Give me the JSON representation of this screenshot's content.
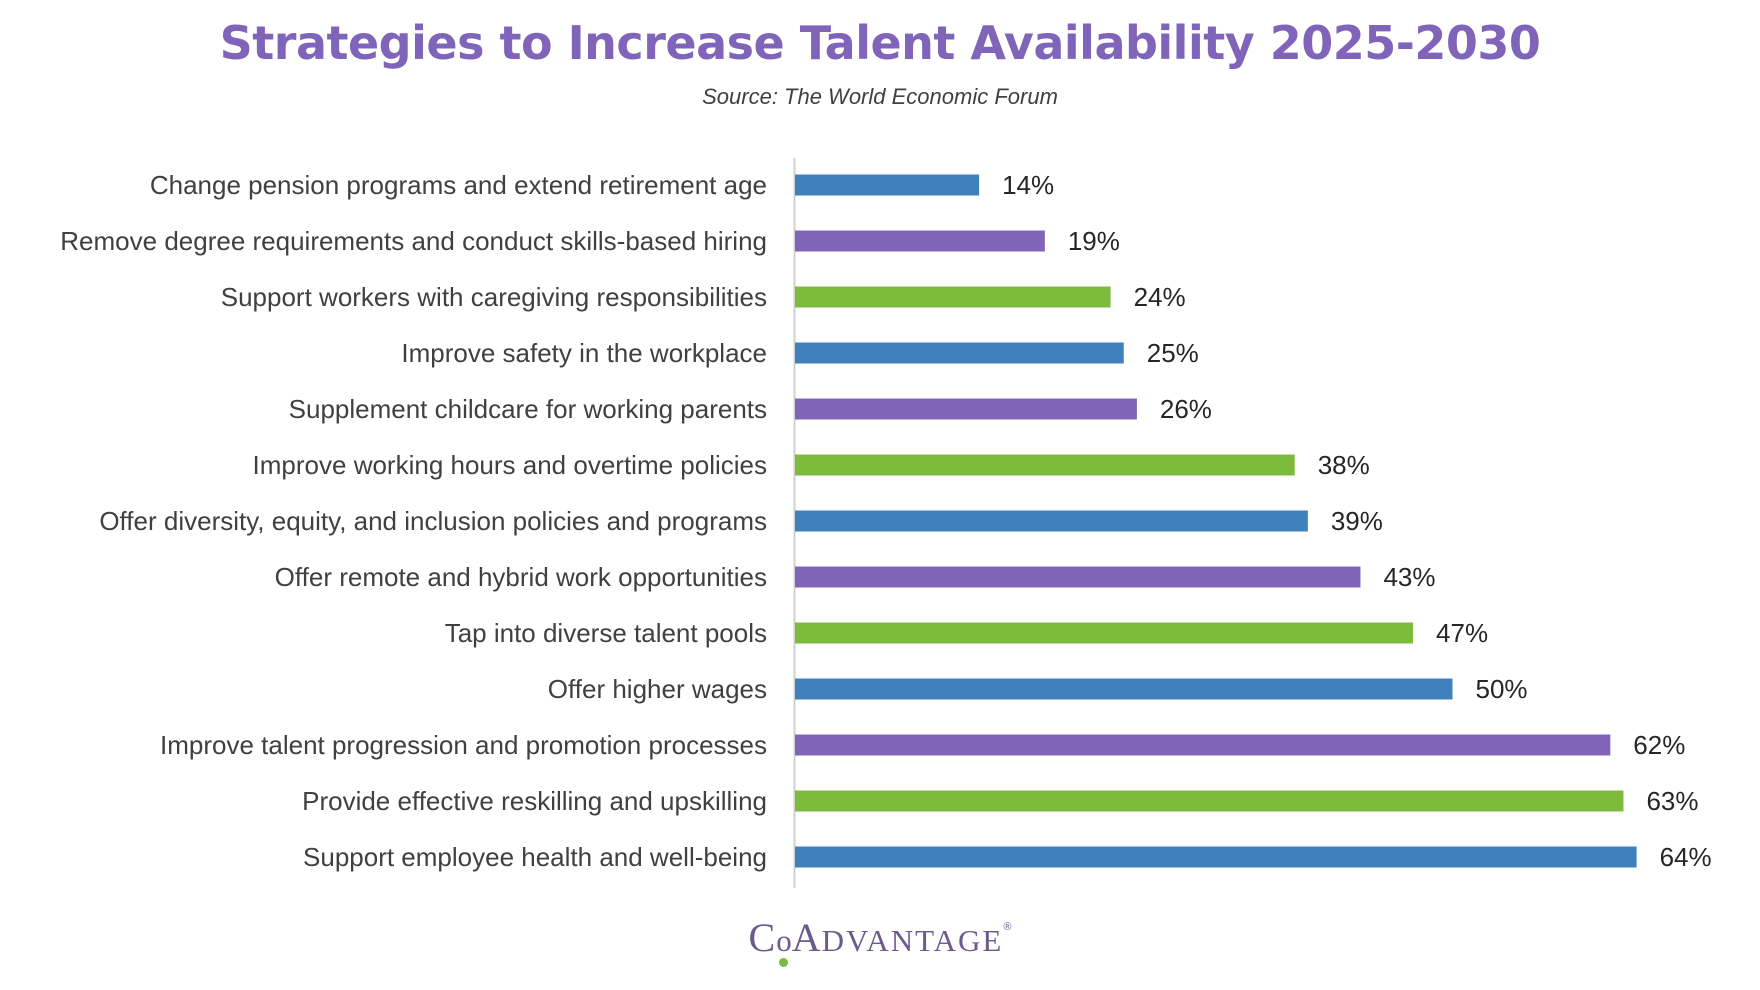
{
  "chart_data": {
    "type": "bar",
    "orientation": "horizontal",
    "title": "Strategies to Increase Talent Availability 2025-2030",
    "subtitle": "Source: The World Economic Forum",
    "xlabel": "",
    "ylabel": "",
    "xlim": [
      0,
      70
    ],
    "grid": false,
    "legend": "none",
    "unit": "%",
    "categories": [
      "Change pension programs and extend retirement age",
      "Remove degree requirements and conduct skills-based hiring",
      "Support workers with caregiving responsibilities",
      "Improve safety in the workplace",
      "Supplement childcare for working parents",
      "Improve working hours and overtime policies",
      "Offer diversity, equity, and inclusion policies and programs",
      "Offer remote and hybrid work opportunities",
      "Tap into diverse talent pools",
      "Offer higher wages",
      "Improve talent progression and promotion processes",
      "Provide effective reskilling and upskilling",
      "Support employee health and well-being"
    ],
    "values": [
      14,
      19,
      24,
      25,
      26,
      38,
      39,
      43,
      47,
      50,
      62,
      63,
      64
    ],
    "value_labels": [
      "14%",
      "19%",
      "24%",
      "25%",
      "26%",
      "38%",
      "39%",
      "43%",
      "47%",
      "50%",
      "62%",
      "63%",
      "64%"
    ],
    "bar_colors": [
      "#3f81bd",
      "#8064b9",
      "#7dbb3c",
      "#3f81bd",
      "#8064b9",
      "#7dbb3c",
      "#3f81bd",
      "#8064b9",
      "#7dbb3c",
      "#3f81bd",
      "#8064b9",
      "#7dbb3c",
      "#3f81bd"
    ]
  },
  "colors": {
    "title": "#8064b9",
    "axis": "#d0d0d0",
    "logo": "#6b5b8c",
    "logo_dot": "#7dbb3c"
  },
  "logo": {
    "text": "CoAdvantage",
    "c": "C",
    "o": "o",
    "a": "A",
    "rest": "DVANTAGE",
    "reg": "®"
  }
}
